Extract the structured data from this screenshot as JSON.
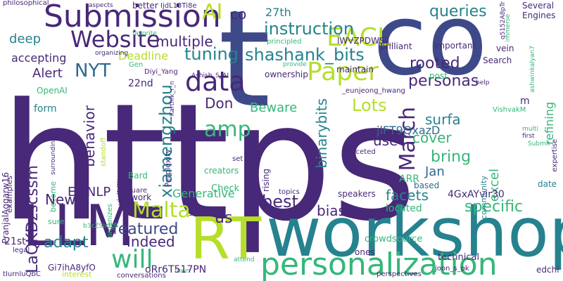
{
  "palette": {
    "dark_purple": "#440154",
    "purple": "#482878",
    "indigo": "#3e4989",
    "blue": "#31688e",
    "teal": "#26828e",
    "green_teal": "#1f9e89",
    "green": "#35b779",
    "light_green": "#6ece58",
    "lime": "#b5de2b",
    "yellow": "#fde725"
  },
  "words": [
    "https",
    "t",
    "co",
    "workshop",
    "RT",
    "LLM",
    "personalization",
    "Submission",
    "Website",
    "data",
    "Paper",
    "EACL",
    "AI",
    "amp",
    "will",
    "Malta",
    "March",
    "instruction",
    "queries",
    "tuning",
    "NYT",
    "shashank_bits",
    "multiple",
    "xiamengzhou",
    "rooted",
    "Lots",
    "personas",
    "surfa",
    "use",
    "cover",
    "bring",
    "specific",
    "best",
    "biases",
    "featured",
    "us",
    "adapt",
    "Indeed",
    "excel",
    "facets",
    "Jan",
    "binarybits",
    "behavior",
    "Beware",
    "Don",
    "New",
    "EMNLP",
    "Generative",
    "LaQKDzscssm",
    "Alert",
    "deep",
    "accepting",
    "Deadline",
    "co",
    "27th",
    "22nd",
    "form",
    "Several",
    "Engines",
    "refining",
    "ARR",
    "jlFT9QxazD",
    "date",
    "located",
    "based",
    "4GxAYvir30",
    "speakers",
    "ownership",
    "maintain",
    "important",
    "vein",
    "Search",
    "post",
    "brilliant",
    "lWVZPDWSii",
    "principled",
    "better",
    "IjdL13Ti8e",
    "aspects",
    "philosophical",
    "q5152A8pTr",
    "OpenAI",
    "Gen",
    "Diyi_Yang",
    "Karthik_r_n",
    "Ashish_S_AI",
    "_eunjeong_hwang",
    "provide",
    "organizing",
    "favorite",
    "immerse",
    "help",
    "m",
    "VishvakM",
    "ashwinkalyan7",
    "multi",
    "first",
    "expertise",
    "Submit",
    "community",
    "crowdsource",
    "technical",
    "edchi",
    "perspectives",
    "joon_s_pk",
    "faceted",
    "topics",
    "rising",
    "set",
    "creators",
    "Check",
    "Perplexity",
    "Bard",
    "square",
    "visibility",
    "organizes",
    "standoff",
    "sure",
    "become",
    "PranjalAggarw16",
    "surrounding",
    "examples",
    "21st",
    "Gi7ihA8yfO",
    "interest",
    "legal",
    "tIurnluQbC",
    "conversations",
    "attend",
    "town",
    "oRr6T517PN",
    "ones",
    "similar",
    "work",
    "b3cZSixttS"
  ]
}
